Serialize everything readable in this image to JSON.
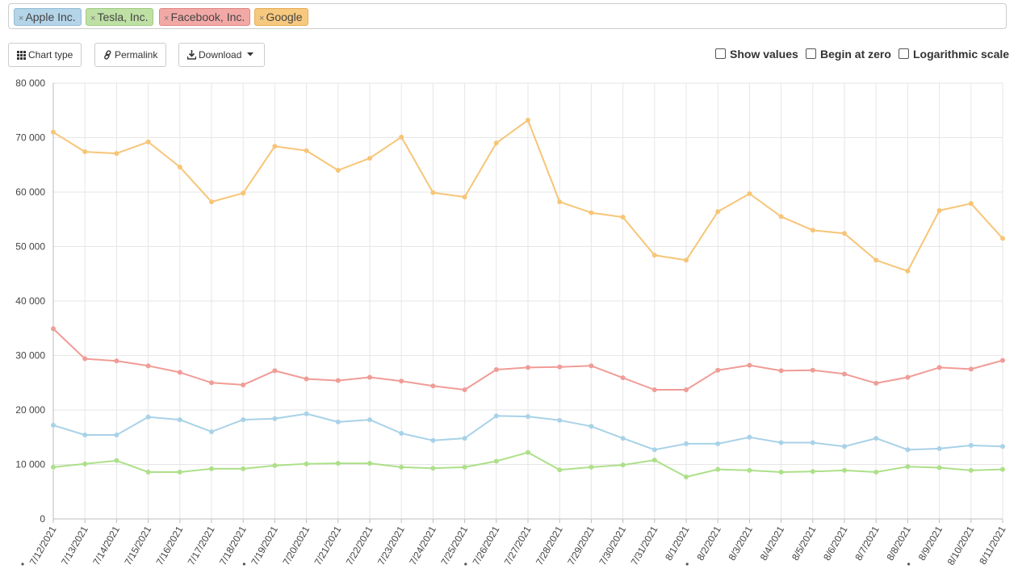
{
  "tags": [
    {
      "label": "Apple Inc.",
      "color": "#b4d4e8",
      "border": "#93bcd6"
    },
    {
      "label": "Tesla, Inc.",
      "color": "#bfe0a4",
      "border": "#9fcb80"
    },
    {
      "label": "Facebook, Inc.",
      "color": "#f2a9a6",
      "border": "#e08884"
    },
    {
      "label": "Google",
      "color": "#f7c97f",
      "border": "#e3ad57"
    }
  ],
  "remove_glyph": "×",
  "toolbar": {
    "chart_type_label": "Chart type",
    "permalink_label": "Permalink",
    "download_label": "Download"
  },
  "options": {
    "show_values_label": "Show values",
    "begin_at_zero_label": "Begin at zero",
    "log_scale_label": "Logarithmic scale"
  },
  "chart_data": {
    "type": "line",
    "x": [
      "7/12/2021",
      "7/13/2021",
      "7/14/2021",
      "7/15/2021",
      "7/16/2021",
      "7/17/2021",
      "7/18/2021",
      "7/19/2021",
      "7/20/2021",
      "7/21/2021",
      "7/22/2021",
      "7/23/2021",
      "7/24/2021",
      "7/25/2021",
      "7/26/2021",
      "7/27/2021",
      "7/28/2021",
      "7/29/2021",
      "7/30/2021",
      "7/31/2021",
      "8/1/2021",
      "8/2/2021",
      "8/3/2021",
      "8/4/2021",
      "8/5/2021",
      "8/6/2021",
      "8/7/2021",
      "8/8/2021",
      "8/9/2021",
      "8/10/2021",
      "8/11/2021"
    ],
    "marked_ticks": [
      "7/12/2021",
      "7/19/2021",
      "7/26/2021",
      "8/2/2021",
      "8/9/2021"
    ],
    "ylim": [
      0,
      80000
    ],
    "yticks": [
      0,
      10000,
      20000,
      30000,
      40000,
      50000,
      60000,
      70000,
      80000
    ],
    "ytick_labels": [
      "0",
      "10 000",
      "20 000",
      "30 000",
      "40 000",
      "50 000",
      "60 000",
      "70 000",
      "80 000"
    ],
    "grid": true,
    "series": [
      {
        "name": "Apple Inc.",
        "color": "#a8d2e8",
        "values": [
          17200,
          15400,
          15400,
          18700,
          18200,
          16000,
          18200,
          18400,
          19300,
          17800,
          18200,
          15700,
          14400,
          14800,
          18900,
          18800,
          18100,
          17000,
          14800,
          12700,
          13800,
          13800,
          15000,
          14000,
          14000,
          13300,
          14800,
          12700,
          12900,
          13500,
          13300
        ]
      },
      {
        "name": "Tesla, Inc.",
        "color": "#ade089",
        "values": [
          9500,
          10100,
          10700,
          8600,
          8600,
          9200,
          9200,
          9800,
          10100,
          10200,
          10200,
          9500,
          9300,
          9500,
          10600,
          12200,
          9000,
          9500,
          9900,
          10800,
          7700,
          9100,
          8900,
          8600,
          8700,
          8900,
          8600,
          9600,
          9400,
          8900,
          9100
        ]
      },
      {
        "name": "Facebook, Inc.",
        "color": "#f09c97",
        "values": [
          34900,
          29400,
          29000,
          28100,
          26900,
          25000,
          24600,
          27200,
          25700,
          25400,
          26000,
          25300,
          24400,
          23700,
          27400,
          27800,
          27900,
          28100,
          25900,
          23700,
          23700,
          27300,
          28200,
          27200,
          27300,
          26600,
          24900,
          26000,
          27800,
          27500,
          29100
        ]
      },
      {
        "name": "Google",
        "color": "#f7c577",
        "values": [
          71000,
          67400,
          67100,
          69200,
          64600,
          58200,
          59800,
          68400,
          67600,
          64000,
          66200,
          70100,
          59900,
          59100,
          69000,
          73200,
          58200,
          56200,
          55400,
          48400,
          47500,
          56400,
          59700,
          55500,
          53000,
          52400,
          47500,
          45500,
          56600,
          57900,
          51500
        ]
      }
    ]
  }
}
